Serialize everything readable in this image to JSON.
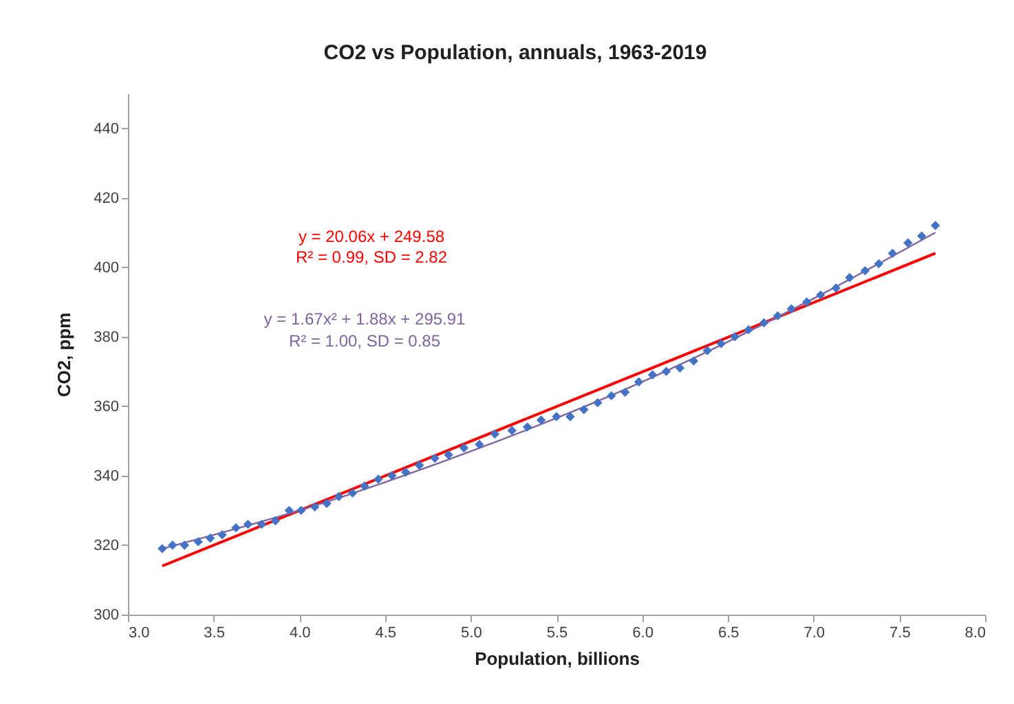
{
  "chart_data": {
    "type": "scatter",
    "title": "CO2 vs Population, annuals, 1963-2019",
    "xlabel": "Population, billions",
    "ylabel": "CO2, ppm",
    "xlim": [
      3.0,
      8.0
    ],
    "xticks": [
      {
        "value": 3.0,
        "label": "3.0"
      },
      3.5,
      {
        "value": 4.0,
        "label": "4.0"
      },
      4.5,
      {
        "value": 5.0,
        "label": "5.0"
      },
      5.5,
      {
        "value": 6.0,
        "label": "6.0"
      },
      6.5,
      {
        "value": 7.0,
        "label": "7.0"
      },
      7.5,
      {
        "value": 8.0,
        "label": "8.0"
      }
    ],
    "ylim": [
      300,
      450
    ],
    "yticks": [
      300,
      320,
      340,
      360,
      380,
      400,
      420,
      440
    ],
    "grid": false,
    "series": [
      {
        "type": "scatter",
        "color": "#4472c4",
        "marker": "diamond",
        "x": [
          3.2,
          3.26,
          3.33,
          3.41,
          3.48,
          3.55,
          3.63,
          3.7,
          3.78,
          3.86,
          3.94,
          4.01,
          4.09,
          4.16,
          4.23,
          4.31,
          4.38,
          4.46,
          4.54,
          4.62,
          4.7,
          4.79,
          4.87,
          4.96,
          5.05,
          5.14,
          5.24,
          5.33,
          5.41,
          5.5,
          5.58,
          5.66,
          5.74,
          5.82,
          5.9,
          5.98,
          6.06,
          6.14,
          6.22,
          6.3,
          6.38,
          6.46,
          6.54,
          6.62,
          6.71,
          6.79,
          6.87,
          6.96,
          7.04,
          7.13,
          7.21,
          7.3,
          7.38,
          7.46,
          7.55,
          7.63,
          7.71
        ],
        "values": [
          319,
          320,
          320,
          321,
          322,
          323,
          325,
          326,
          326,
          327,
          330,
          330,
          331,
          332,
          334,
          335,
          337,
          339,
          340,
          341,
          343,
          345,
          346,
          348,
          349,
          352,
          353,
          354,
          356,
          357,
          357,
          359,
          361,
          363,
          364,
          367,
          369,
          370,
          371,
          373,
          376,
          378,
          380,
          382,
          384,
          386,
          388,
          390,
          392,
          394,
          397,
          399,
          401,
          404,
          407,
          409,
          412
        ]
      },
      {
        "type": "line",
        "color": "#ff0000",
        "marker": "none",
        "x": [
          3.2,
          7.71
        ],
        "values": [
          314,
          404
        ]
      },
      {
        "type": "line",
        "color": "#8064a2",
        "marker": "none",
        "x": [
          3.2,
          4.0,
          5.0,
          6.0,
          7.0,
          7.71
        ],
        "values": [
          319,
          330,
          347,
          367,
          391,
          410
        ]
      }
    ],
    "annotations": [
      "y = 20.06x + 249.58",
      "R² = 0.99, SD = 2.82",
      "y = 1.67x² + 1.88x + 295.91",
      "R² = 1.00, SD = 0.85"
    ]
  }
}
